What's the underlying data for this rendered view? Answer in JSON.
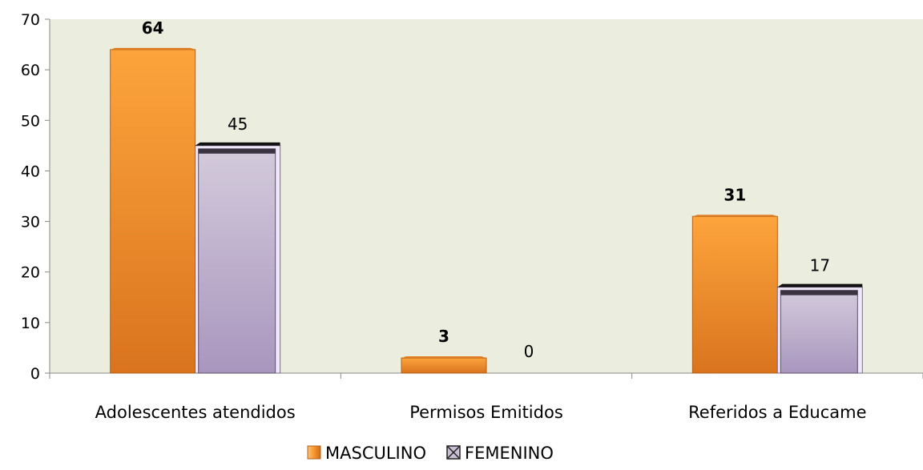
{
  "chart_data": {
    "type": "bar",
    "categories": [
      "Adolescentes atendidos",
      "Permisos Emitidos",
      "Referidos a Educame"
    ],
    "series": [
      {
        "name": "MASCULINO",
        "values": [
          64,
          3,
          31
        ],
        "color": "#F7962F",
        "label_bold": true
      },
      {
        "name": "FEMENINO",
        "values": [
          45,
          0,
          17
        ],
        "color": "#C9BFD4",
        "label_bold": false
      }
    ],
    "ylim": [
      0,
      70
    ],
    "yticks": [
      0,
      10,
      20,
      30,
      40,
      50,
      60,
      70
    ],
    "grid": false,
    "plot_background": "#EBEEDF",
    "legend_position": "bottom-center"
  }
}
